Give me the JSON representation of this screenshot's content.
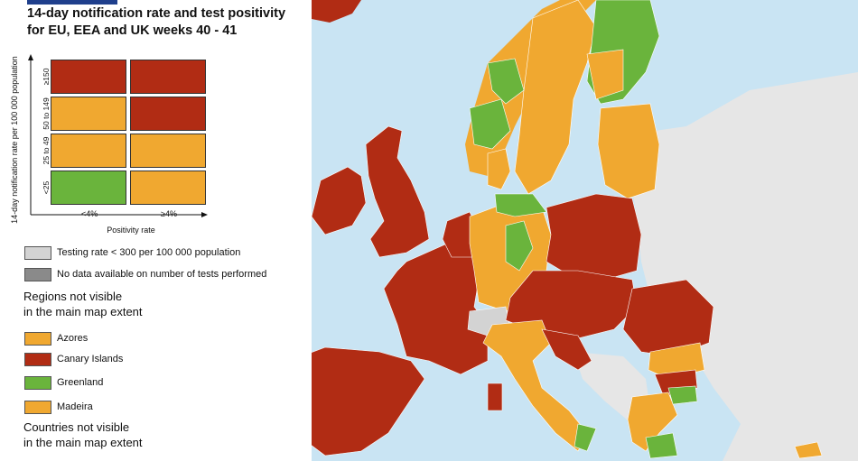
{
  "title_line1": "14-day notification rate and test positivity",
  "title_line2": "for EU, EEA and UK weeks 40 - 41",
  "colors": {
    "sea": "#c9e4f3",
    "red": "#b12c14",
    "orange": "#f0a830",
    "green": "#6ab43c",
    "light_grey": "#d3d3d3",
    "dark_grey": "#8a8a8a",
    "non_eu": "#e6e6e6"
  },
  "matrix": {
    "y_axis_title": "14-day notification rate per 100 000 population",
    "y_ticks": [
      "≥150",
      "50 to 149",
      "25 to 49",
      "<25"
    ],
    "x_ticks": [
      "<4%",
      "≥4%"
    ],
    "x_axis_title": "Positivity rate",
    "cells": [
      [
        "red",
        "red"
      ],
      [
        "orange",
        "red"
      ],
      [
        "orange",
        "orange"
      ],
      [
        "green",
        "orange"
      ]
    ]
  },
  "legend": {
    "testing_rate": "Testing rate < 300 per 100 000 population",
    "no_data": "No data available on number of tests performed",
    "regions_head_1": "Regions not visible",
    "regions_head_2": "in the main map extent",
    "regions": [
      {
        "label": "Azores",
        "color": "orange"
      },
      {
        "label": "Canary Islands",
        "color": "red"
      },
      {
        "label": "Greenland",
        "color": "green"
      },
      {
        "label": "Madeira",
        "color": "orange"
      }
    ],
    "countries_head_1": "Countries not visible",
    "countries_head_2": "in the main map extent"
  }
}
